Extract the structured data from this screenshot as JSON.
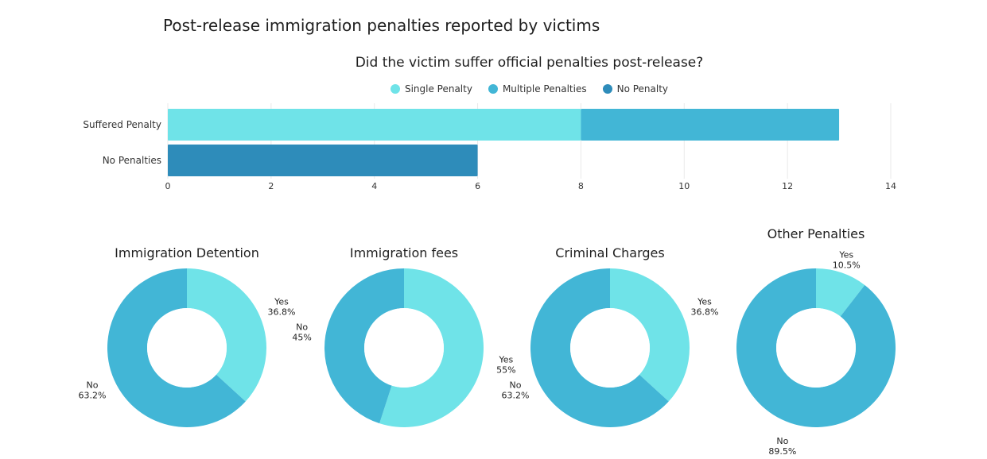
{
  "page": {
    "title": "Post-release immigration penalties reported by victims"
  },
  "chart_data": [
    {
      "type": "bar",
      "orientation": "horizontal",
      "stacked": true,
      "title": "Did the victim suffer official penalties post-release?",
      "categories": [
        "Suffered Penalty",
        "No Penalties"
      ],
      "series": [
        {
          "name": "Single Penalty",
          "color": "#6fe3e8",
          "values": [
            8,
            0
          ]
        },
        {
          "name": "Multiple Penalties",
          "color": "#42b6d6",
          "values": [
            5,
            0
          ]
        },
        {
          "name": "No Penalty",
          "color": "#2e8cba",
          "values": [
            0,
            6
          ]
        }
      ],
      "xlim": [
        0,
        14
      ],
      "xticks": [
        "0",
        "2",
        "4",
        "6",
        "8",
        "10",
        "12",
        "14"
      ],
      "grid": true,
      "legend": "top-center"
    },
    {
      "type": "pie",
      "donut": true,
      "title": "Immigration Detention",
      "slices": [
        {
          "name": "Yes",
          "value": 36.8,
          "label": "36.8%",
          "color": "#6fe3e8"
        },
        {
          "name": "No",
          "value": 63.2,
          "label": "63.2%",
          "color": "#42b6d6"
        }
      ]
    },
    {
      "type": "pie",
      "donut": true,
      "title": "Immigration fees",
      "slices": [
        {
          "name": "Yes",
          "value": 55,
          "label": "55%",
          "color": "#6fe3e8"
        },
        {
          "name": "No",
          "value": 45,
          "label": "45%",
          "color": "#42b6d6"
        }
      ]
    },
    {
      "type": "pie",
      "donut": true,
      "title": "Criminal Charges",
      "slices": [
        {
          "name": "Yes",
          "value": 36.8,
          "label": "36.8%",
          "color": "#6fe3e8"
        },
        {
          "name": "No",
          "value": 63.2,
          "label": "63.2%",
          "color": "#42b6d6"
        }
      ]
    },
    {
      "type": "pie",
      "donut": true,
      "title": "Other Penalties",
      "slices": [
        {
          "name": "Yes",
          "value": 10.5,
          "label": "10.5%",
          "color": "#6fe3e8"
        },
        {
          "name": "No",
          "value": 89.5,
          "label": "89.5%",
          "color": "#42b6d6"
        }
      ]
    }
  ]
}
